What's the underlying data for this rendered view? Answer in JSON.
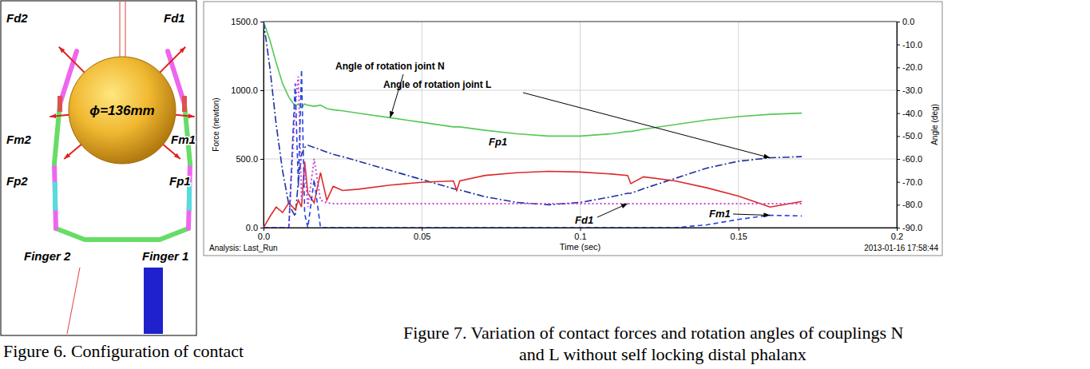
{
  "chart_data": {
    "type": "line",
    "xlabel": "Time (sec)",
    "ylabel": "Force (newton)",
    "y2label": "Angle (deg)",
    "annotations": [
      "Analysis: Last_Run",
      "2013-01-16 17:58:44"
    ],
    "x": [
      0,
      0.002,
      0.004,
      0.006,
      0.008,
      0.01,
      0.011,
      0.012,
      0.013,
      0.014,
      0.016,
      0.018,
      0.02,
      0.022,
      0.025,
      0.03,
      0.04,
      0.05,
      0.06,
      0.061,
      0.062,
      0.07,
      0.08,
      0.09,
      0.1,
      0.11,
      0.115,
      0.116,
      0.12,
      0.13,
      0.14,
      0.15,
      0.16,
      0.17
    ],
    "xlim": [
      0,
      0.2
    ],
    "xticks": [
      {
        "value": 0,
        "label": "0.0"
      },
      0.05,
      0.1,
      0.15,
      0.2
    ],
    "ylim": [
      0,
      1500
    ],
    "yticks": [
      {
        "value": 0,
        "label": "0.0"
      },
      {
        "value": 500,
        "label": "500.0"
      },
      {
        "value": 1000,
        "label": "1000.0"
      },
      {
        "value": 1500,
        "label": "1500.0"
      }
    ],
    "y2lim": [
      -90,
      0
    ],
    "y2ticks": [
      {
        "value": 0,
        "label": "0.0"
      },
      {
        "value": -10,
        "label": "-10.0"
      },
      {
        "value": -20,
        "label": "-20.0"
      },
      {
        "value": -30,
        "label": "-30.0"
      },
      {
        "value": -40,
        "label": "-40.0"
      },
      {
        "value": -50,
        "label": "-50.0"
      },
      {
        "value": -60,
        "label": "-60.0"
      },
      {
        "value": -70,
        "label": "-70.0"
      },
      {
        "value": -80,
        "label": "-80.0"
      },
      {
        "value": -90,
        "label": "-90.0"
      }
    ],
    "grid": true,
    "series": [
      {
        "name": "Angle of rotation joint N",
        "color": "#55c855",
        "line_style": "solid",
        "axis": "y2",
        "values": [
          0,
          -8,
          -18,
          -27,
          -33,
          -37,
          -36,
          -37.5,
          -36,
          -36.5,
          -37,
          -36.5,
          -38,
          -38.5,
          -39,
          -40,
          -42,
          -44,
          -46,
          -46,
          -46,
          -47.5,
          -49,
          -50,
          -50,
          -49,
          -48,
          -48,
          -47,
          -45,
          -43,
          -41.5,
          -40.5,
          -40
        ]
      },
      {
        "name": "Angle of rotation joint L",
        "color": "#1f2f9f",
        "line_style": "dashdot",
        "axis": "y2",
        "values": [
          0,
          -20,
          -45,
          -65,
          -80,
          -85,
          -70,
          -58,
          -55,
          -54,
          -55,
          -56,
          -57,
          -58,
          -59,
          -61,
          -65,
          -69,
          -73,
          -73.3,
          -73.6,
          -76.5,
          -79,
          -80,
          -79,
          -76.5,
          -75,
          -75,
          -73,
          -68.5,
          -64,
          -61,
          -59.5,
          -59
        ]
      },
      {
        "name": "Fp1",
        "color": "#dd2b2b",
        "line_style": "solid",
        "values": [
          0,
          80,
          150,
          110,
          180,
          130,
          200,
          150,
          480,
          250,
          180,
          400,
          200,
          300,
          270,
          280,
          310,
          330,
          340,
          270,
          340,
          380,
          400,
          410,
          405,
          390,
          380,
          320,
          370,
          340,
          290,
          230,
          150,
          190
        ]
      },
      {
        "name": "Fd1",
        "color": "#cc44cc",
        "line_style": "dotted",
        "values": [
          0,
          0,
          0,
          0,
          0,
          900,
          1100,
          200,
          450,
          150,
          500,
          200,
          180,
          175,
          175,
          175,
          175,
          175,
          175,
          175,
          175,
          175,
          175,
          175,
          175,
          175,
          175,
          175,
          175,
          175,
          175,
          175,
          175,
          175
        ]
      },
      {
        "name": "Fm1",
        "color": "#2244dd",
        "line_style": "dashed",
        "values": [
          0,
          0,
          0,
          0,
          0,
          1050,
          300,
          1150,
          100,
          0,
          350,
          0,
          0,
          0,
          0,
          0,
          0,
          0,
          0,
          0,
          0,
          0,
          0,
          0,
          0,
          0,
          0,
          0,
          0,
          0,
          20,
          60,
          90,
          85
        ]
      }
    ]
  },
  "figure6": {
    "sphere_label": "ϕ=136mm",
    "forces": [
      "Fd2",
      "Fd1",
      "Fm2",
      "Fm1",
      "Fp2",
      "Fp1"
    ],
    "fingers": [
      "Finger 2",
      "Finger 1"
    ]
  },
  "captions": {
    "figure6": "Figure 6. Configuration of contact",
    "figure7": [
      "Figure 7. Variation of contact forces and rotation angles of couplings N",
      "and L without self locking distal phalanx"
    ]
  }
}
